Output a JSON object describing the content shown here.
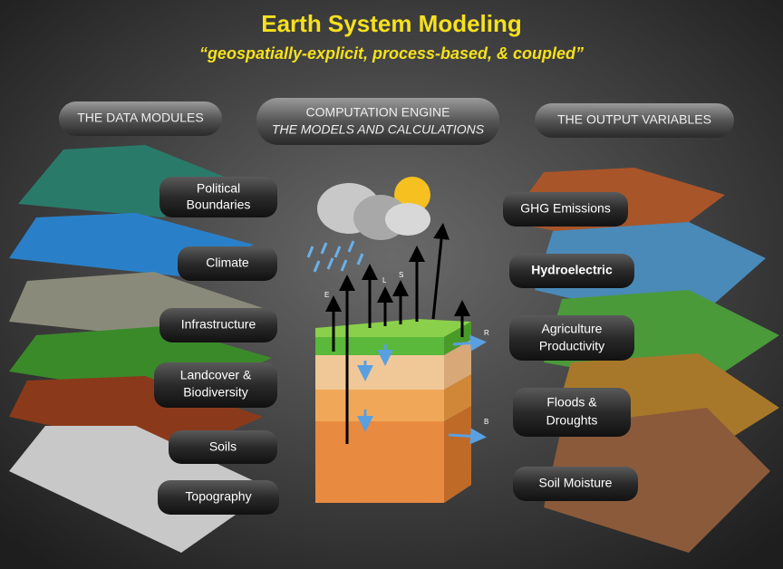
{
  "header": {
    "title": "Earth System Modeling",
    "subtitle": "“geospatially-explicit, process-based, & coupled”"
  },
  "sections": {
    "data_modules": "THE DATA MODULES",
    "engine": [
      "COMPUTATION ENGINE",
      "THE MODELS AND CALCULATIONS"
    ],
    "outputs": "THE OUTPUT VARIABLES"
  },
  "data_modules": [
    [
      "Political",
      "Boundaries"
    ],
    [
      "Climate"
    ],
    [
      "Infrastructure"
    ],
    [
      "Landcover &",
      "Biodiversity"
    ],
    [
      "Soils"
    ],
    [
      "Topography"
    ]
  ],
  "output_variables": [
    [
      "GHG Emissions"
    ],
    [
      "Hydroelectric"
    ],
    [
      "Agriculture",
      "Productivity"
    ],
    [
      "Floods &",
      "Droughts"
    ],
    [
      "Soil Moisture"
    ]
  ],
  "diagram_labels": {
    "runoff": "R",
    "baseflow": "B",
    "evaporation": "E",
    "longwave": "L",
    "shortwave": "S"
  }
}
